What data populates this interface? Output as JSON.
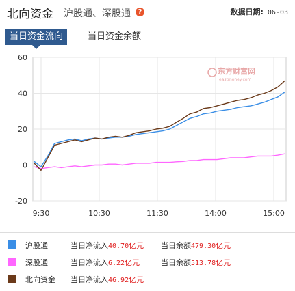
{
  "header": {
    "title": "北向资金",
    "subtitle": "沪股通、深股通",
    "help_icon": "question-icon",
    "date_label": "数据日期:",
    "date_value": "06-03"
  },
  "tabs": [
    {
      "label": "当日资金流向",
      "active": true
    },
    {
      "label": "当日资金余额",
      "active": false
    }
  ],
  "watermark": {
    "text": "东方财富网",
    "subtext": "eastmoney.com"
  },
  "colors": {
    "hgt": "#3a8ee6",
    "sgt": "#ff66ff",
    "north": "#6b3a1a",
    "tab_active": "#2f5a8f",
    "value_text": "#e02020"
  },
  "chart_data": {
    "type": "line",
    "x_ticks": [
      "9:30",
      "10:30",
      "11:30",
      "14:00",
      "15:00"
    ],
    "y_ticks": [
      "60",
      "40",
      "20",
      "0",
      "-20"
    ],
    "ylim": [
      -20,
      60
    ],
    "grid": true,
    "series": [
      {
        "name": "沪股通",
        "color": "#3a8ee6",
        "values": [
          2.0,
          -1.0,
          5.0,
          12.0,
          13.0,
          14.0,
          14.5,
          13.5,
          14.5,
          15.0,
          14.5,
          15.0,
          15.5,
          15.5,
          16.0,
          17.0,
          17.5,
          18.0,
          18.5,
          19.0,
          20.0,
          22.0,
          24.0,
          26.0,
          27.0,
          28.5,
          29.0,
          30.0,
          30.5,
          31.0,
          32.0,
          32.5,
          33.0,
          34.0,
          35.0,
          36.5,
          38.0,
          40.7
        ]
      },
      {
        "name": "深股通",
        "color": "#ff66ff",
        "values": [
          -1.0,
          -2.0,
          -1.5,
          -1.0,
          -1.5,
          -1.0,
          -0.5,
          -1.0,
          -0.5,
          0.0,
          0.0,
          0.5,
          0.5,
          0.0,
          0.5,
          1.0,
          1.0,
          1.0,
          1.5,
          1.5,
          1.5,
          1.8,
          2.0,
          2.5,
          2.5,
          3.0,
          3.0,
          3.0,
          3.5,
          4.0,
          4.0,
          4.0,
          4.5,
          5.0,
          5.0,
          5.0,
          5.5,
          6.22
        ]
      },
      {
        "name": "北向资金",
        "color": "#6b3a1a",
        "values": [
          1.0,
          -3.0,
          4.0,
          11.0,
          12.0,
          13.0,
          14.0,
          13.0,
          14.0,
          15.0,
          14.5,
          15.5,
          16.0,
          15.5,
          16.5,
          18.0,
          18.5,
          19.0,
          20.0,
          20.5,
          21.5,
          23.8,
          26.0,
          28.5,
          29.5,
          31.5,
          32.0,
          33.0,
          34.0,
          35.0,
          36.0,
          36.5,
          37.5,
          39.0,
          40.0,
          41.5,
          43.5,
          46.92
        ]
      }
    ]
  },
  "legend": [
    {
      "name": "沪股通",
      "color": "#3a8ee6",
      "flow_label": "当日净流入",
      "flow_value": "40.70",
      "flow_unit": "亿元",
      "balance_label": "当日余额",
      "balance_value": "479.30",
      "balance_unit": "亿元"
    },
    {
      "name": "深股通",
      "color": "#ff66ff",
      "flow_label": "当日净流入",
      "flow_value": "6.22",
      "flow_unit": "亿元",
      "balance_label": "当日余额",
      "balance_value": "513.78",
      "balance_unit": "亿元"
    },
    {
      "name": "北向资金",
      "color": "#6b3a1a",
      "flow_label": "当日净流入",
      "flow_value": "46.92",
      "flow_unit": "亿元"
    }
  ]
}
